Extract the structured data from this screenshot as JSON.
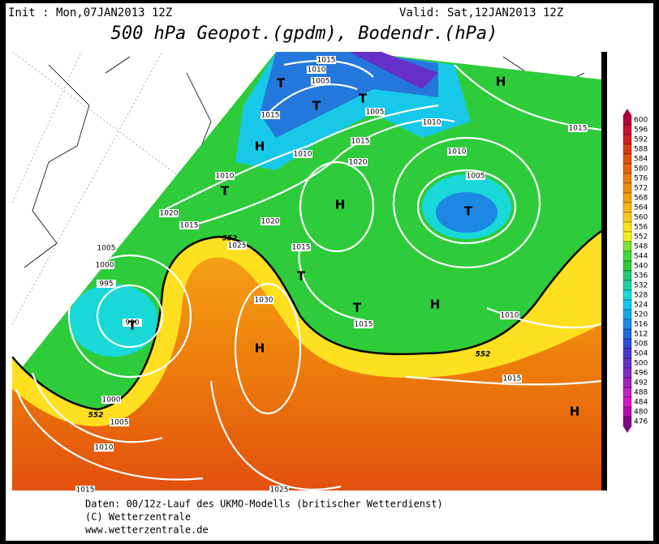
{
  "header": {
    "init": "Init : Mon,07JAN2013 12Z",
    "valid": "Valid: Sat,12JAN2013 12Z",
    "title": "500 hPa Geopot.(gpdm), Bodendr.(hPa)"
  },
  "colorbar": {
    "ticks": [
      600,
      596,
      592,
      588,
      584,
      580,
      576,
      572,
      568,
      564,
      560,
      556,
      552,
      548,
      544,
      540,
      536,
      532,
      528,
      524,
      520,
      516,
      512,
      508,
      504,
      500,
      496,
      492,
      488,
      484,
      480,
      476
    ],
    "colors": [
      "#b0003a",
      "#c8102e",
      "#d4201e",
      "#dc3a14",
      "#e2500e",
      "#e8640c",
      "#ec7a0c",
      "#f08c10",
      "#f4a014",
      "#f8b418",
      "#fcc81c",
      "#ffe020",
      "#f4f020",
      "#7ee040",
      "#44d83c",
      "#2ecc3a",
      "#22c870",
      "#1ed0a8",
      "#18d8d8",
      "#10c8f0",
      "#14a8ec",
      "#1c88e4",
      "#2468dc",
      "#3048d4",
      "#4838cc",
      "#6430c8",
      "#8028c4",
      "#a020c0",
      "#c020c4",
      "#d818c8",
      "#b010b0",
      "#800880"
    ]
  },
  "pressure_labels": [
    "1015",
    "1010",
    "1005",
    "1015",
    "1005",
    "1010",
    "1010",
    "1005",
    "1010",
    "1015",
    "1020",
    "1015",
    "1010",
    "1020",
    "1015",
    "1020",
    "1005",
    "1000",
    "995",
    "990",
    "1025",
    "1015",
    "1030",
    "1015",
    "1010",
    "1015",
    "1000",
    "1005",
    "1010",
    "1025",
    "1015"
  ],
  "contour_552": [
    "552",
    "552",
    "552"
  ],
  "systems": [
    "T",
    "T",
    "T",
    "H",
    "T",
    "H",
    "H",
    "T",
    "T",
    "T",
    "H",
    "T",
    "H",
    "H"
  ],
  "footer": [
    "Daten: 00/12z-Lauf des UKMO-Modells (britischer Wetterdienst)",
    "(C) Wetterzentrale",
    "www.wetterzentrale.de"
  ]
}
